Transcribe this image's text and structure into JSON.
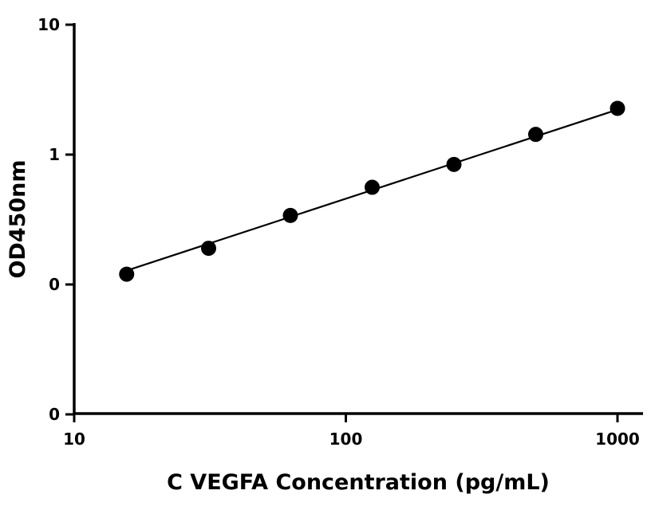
{
  "chart_data": {
    "type": "scatter",
    "title": "",
    "xlabel": "C VEGFA Concentration (pg/mL)",
    "ylabel": "OD450nm",
    "xscale": "log",
    "yscale": "log",
    "xlim": [
      10,
      1200
    ],
    "ylim": [
      0.01,
      10
    ],
    "x_ticks": [
      {
        "value": 10,
        "label": "10"
      },
      {
        "value": 100,
        "label": "100"
      },
      {
        "value": 1000,
        "label": "1000"
      }
    ],
    "y_ticks": [
      {
        "value": 0.01,
        "label": "0"
      },
      {
        "value": 0.1,
        "label": "0"
      },
      {
        "value": 1,
        "label": "1"
      },
      {
        "value": 10,
        "label": "10"
      }
    ],
    "grid": false,
    "legend": "none",
    "series": [
      {
        "x": [
          15.6,
          31.25,
          62.5,
          125,
          250,
          500,
          1000
        ],
        "y": [
          0.12,
          0.19,
          0.34,
          0.56,
          0.84,
          1.43,
          2.27
        ],
        "marker_color": "#000000",
        "fit_line": {
          "x": [
            15.6,
            1000
          ],
          "y": [
            0.128,
            2.22
          ]
        }
      }
    ]
  }
}
